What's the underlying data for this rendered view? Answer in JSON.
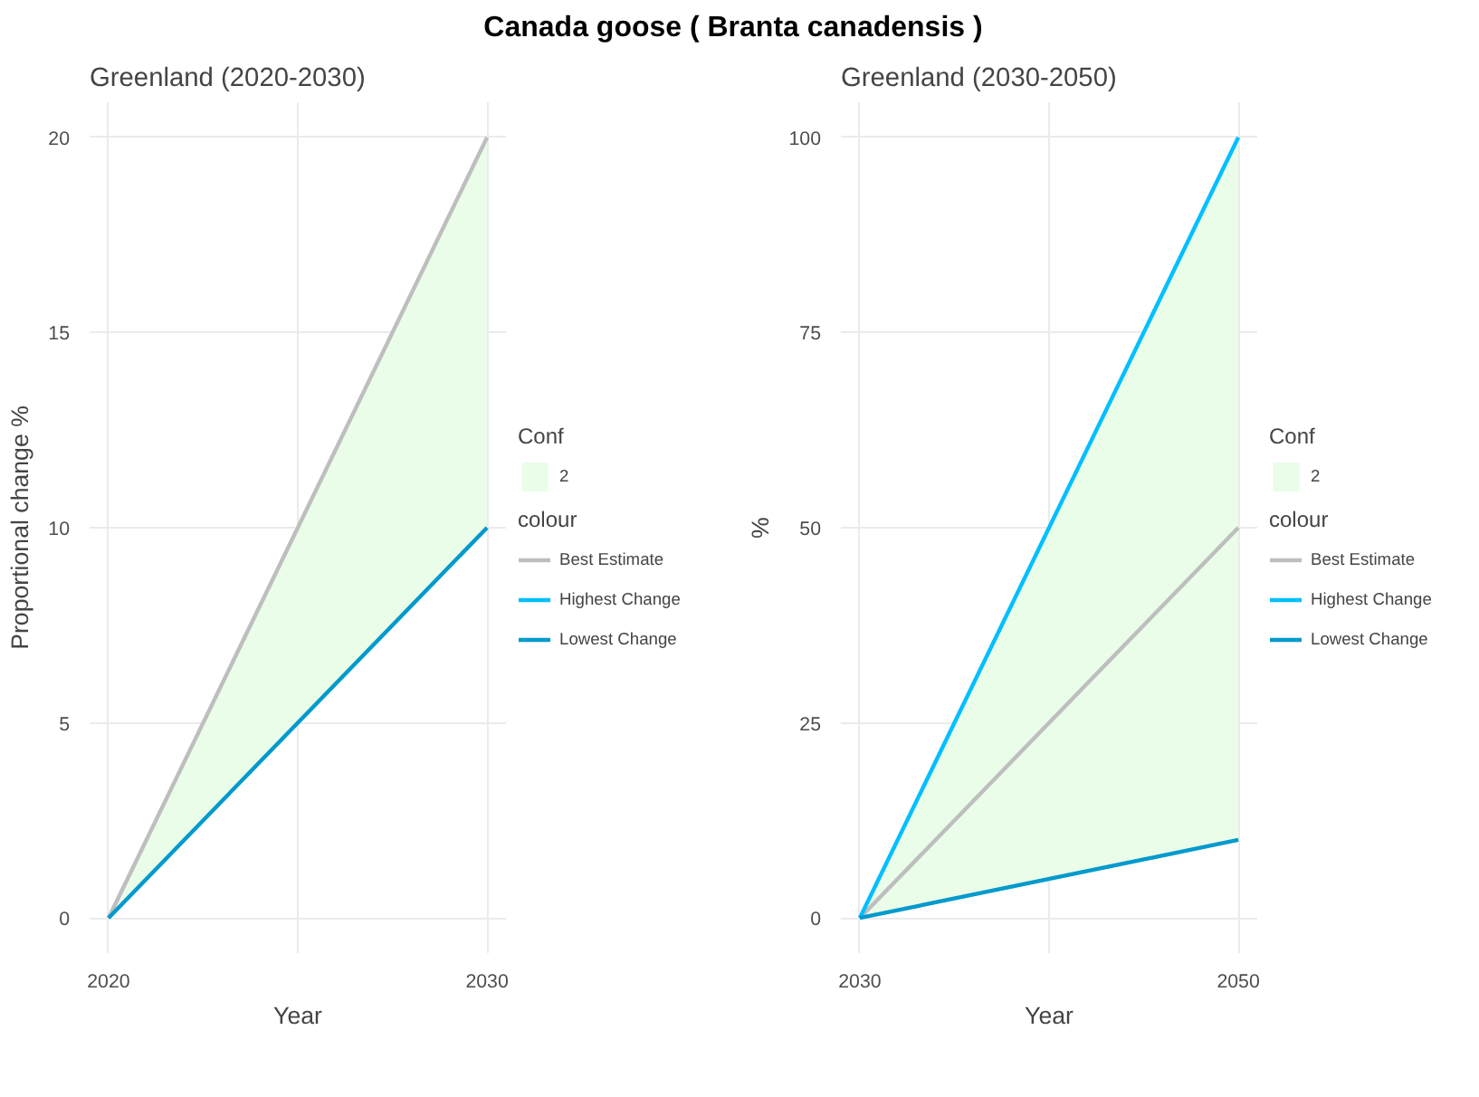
{
  "chart_data": [
    {
      "type": "line",
      "title": "Canada goose ( Branta canadensis )",
      "subtitle": "Greenland (2020-2030)",
      "xlabel": "Year",
      "ylabel": "Proportional change %",
      "legend_title": "colour",
      "annotations": [
        "Conf"
      ],
      "x": [
        2020,
        2030
      ],
      "xlim": [
        2019.5,
        2030.5
      ],
      "xticks": [
        2020,
        {
          "value": 2025,
          "label": null
        },
        2030
      ],
      "ylim": [
        -0.9,
        20.9
      ],
      "yticks": [
        0,
        5,
        10,
        15,
        20
      ],
      "grid": true,
      "legend": "right",
      "series": [
        {
          "name": "2",
          "type": "area",
          "color": "#e9fde9",
          "values": [
            null,
            null
          ],
          "lower": [
            0,
            10
          ],
          "upper": [
            0,
            20
          ]
        },
        {
          "name": "Best Estimate",
          "color": "#bebebe",
          "values": [
            0,
            20
          ]
        },
        {
          "name": "Highest Change",
          "color": "#00bfff",
          "values": [
            null,
            null
          ]
        },
        {
          "name": "Lowest Change",
          "color": "#009acd",
          "values": [
            0,
            10
          ]
        }
      ]
    },
    {
      "type": "line",
      "subtitle": "Greenland (2030-2050)",
      "xlabel": "Year",
      "ylabel": "%",
      "legend_title": "colour",
      "annotations": [
        "Conf"
      ],
      "x": [
        2030,
        2050
      ],
      "xlim": [
        2029,
        2051
      ],
      "xticks": [
        2030,
        {
          "value": 2040,
          "label": null
        },
        2050
      ],
      "ylim": [
        -4.5,
        104.5
      ],
      "yticks": [
        0,
        25,
        50,
        75,
        100
      ],
      "grid": true,
      "legend": "right",
      "series": [
        {
          "name": "2",
          "type": "area",
          "color": "#e9fde9",
          "values": [
            null,
            null
          ],
          "lower": [
            0,
            10
          ],
          "upper": [
            0,
            100
          ]
        },
        {
          "name": "Best Estimate",
          "color": "#bebebe",
          "values": [
            0,
            50
          ]
        },
        {
          "name": "Highest Change",
          "color": "#00bfff",
          "values": [
            0,
            100
          ]
        },
        {
          "name": "Lowest Change",
          "color": "#009acd",
          "values": [
            0,
            10
          ]
        }
      ]
    }
  ]
}
